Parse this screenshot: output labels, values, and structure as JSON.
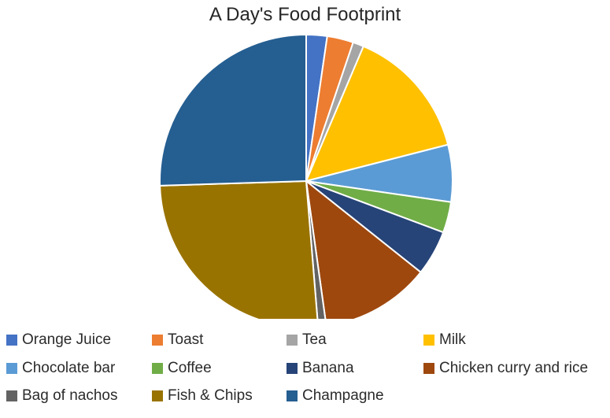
{
  "chart_data": {
    "type": "pie",
    "title": "A Day's Food Footprint",
    "legend_position": "bottom",
    "start_angle_deg": 0,
    "direction": "clockwise",
    "series": [
      {
        "categories": [
          "Orange Juice",
          "Toast",
          "Tea",
          "Milk",
          "Chocolate bar",
          "Coffee",
          "Banana",
          "Chicken curry and rice",
          "Bag of nachos",
          "Fish & Chips",
          "Champagne"
        ],
        "values": [
          2.3,
          2.9,
          1.2,
          14.6,
          6.3,
          3.4,
          5.0,
          12.1,
          0.9,
          25.8,
          25.5
        ],
        "colors": [
          "#4472c4",
          "#ed7d31",
          "#a5a5a5",
          "#ffc000",
          "#5b9bd5",
          "#70ad47",
          "#264478",
          "#9e480e",
          "#636363",
          "#997300",
          "#255e91"
        ]
      }
    ]
  }
}
